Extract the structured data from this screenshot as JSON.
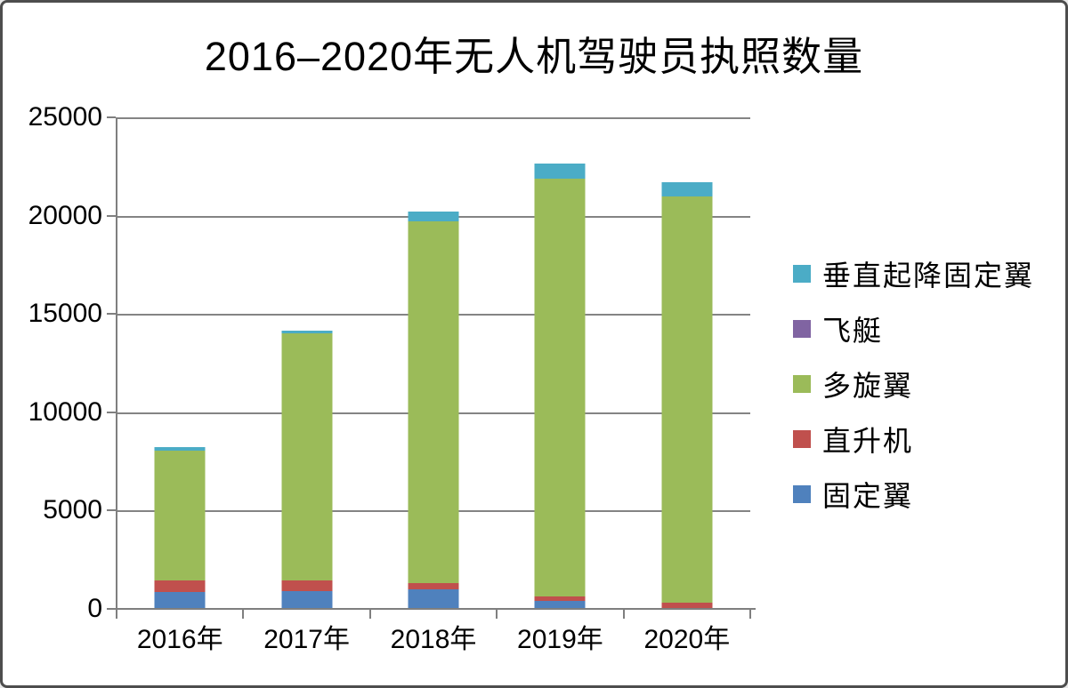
{
  "page": {
    "background": "#ffffff",
    "frame_border_color": "#4d4d4d"
  },
  "chart_data": {
    "type": "bar",
    "stacked": true,
    "title": "2016–2020年无人机驾驶员执照数量",
    "categories": [
      "2016年",
      "2017年",
      "2018年",
      "2019年",
      "2020年"
    ],
    "series": [
      {
        "key": "fixed-wing",
        "name": "固定翼",
        "color": "#4F81BD",
        "values": [
          850,
          900,
          990,
          400,
          0
        ]
      },
      {
        "key": "helicopter",
        "name": "直升机",
        "color": "#C0504D",
        "values": [
          600,
          570,
          330,
          240,
          300
        ]
      },
      {
        "key": "multi-rotor",
        "name": "多旋翼",
        "color": "#9BBB59",
        "values": [
          6610,
          12540,
          18380,
          21250,
          20690
        ]
      },
      {
        "key": "airship",
        "name": "飞艇",
        "color": "#8064A2",
        "values": [
          0,
          0,
          0,
          0,
          0
        ]
      },
      {
        "key": "vtol-fixed-wing",
        "name": "垂直起降固定翼",
        "color": "#4BACC6",
        "values": [
          150,
          150,
          500,
          750,
          700
        ]
      }
    ],
    "ylim": [
      0,
      25000
    ],
    "y_tick_step": 5000,
    "y_ticks": [
      "25000",
      "20000",
      "15000",
      "10000",
      "5000",
      "0"
    ],
    "xlabel": "",
    "ylabel": "",
    "grid": true,
    "grid_color": "#808080",
    "axis_color": "#7f7f7f",
    "legend_position": "right"
  },
  "legend": {
    "items": [
      {
        "label": "垂直起降固定翼",
        "color": "#4BACC6"
      },
      {
        "label": "飞艇",
        "color": "#8064A2"
      },
      {
        "label": "多旋翼",
        "color": "#9BBB59"
      },
      {
        "label": "直升机",
        "color": "#C0504D"
      },
      {
        "label": "固定翼",
        "color": "#4F81BD"
      }
    ]
  }
}
